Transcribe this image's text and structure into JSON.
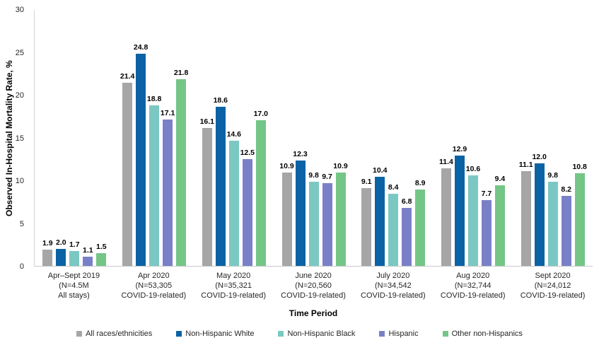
{
  "chart_data": {
    "type": "bar",
    "title": "",
    "ylabel": "Observed In-Hospital Mortality Rate, %",
    "xlabel": "Time Period",
    "ylim": [
      0,
      30
    ],
    "yticks": [
      0,
      5,
      10,
      15,
      20,
      25,
      30
    ],
    "grid": false,
    "legend_position": "bottom",
    "value_labels": true,
    "dotted_pattern_category_index": 0,
    "categories": [
      [
        "Apr–Sept 2019",
        "(N=4.5M",
        "All stays)"
      ],
      [
        "Apr 2020",
        "(N=53,305",
        "COVID-19-related)"
      ],
      [
        "May 2020",
        "(N=35,321",
        "COVID-19-related)"
      ],
      [
        "June 2020",
        "(N=20,560",
        "COVID-19-related)"
      ],
      [
        "July 2020",
        "(N=34,542",
        "COVID-19-related)"
      ],
      [
        "Aug 2020",
        "(N=32,744",
        "COVID-19-related)"
      ],
      [
        "Sept 2020",
        "(N=24,012",
        "COVID-19-related)"
      ]
    ],
    "series": [
      {
        "name": "All races/ethnicities",
        "color": "#A6A6A6",
        "values": [
          1.9,
          21.4,
          16.1,
          10.9,
          9.1,
          11.4,
          11.1
        ]
      },
      {
        "name": "Non-Hispanic White",
        "color": "#0B63A5",
        "values": [
          2.0,
          24.8,
          18.6,
          12.3,
          10.4,
          12.9,
          12.0
        ]
      },
      {
        "name": "Non-Hispanic Black",
        "color": "#7BC8C3",
        "values": [
          1.7,
          18.8,
          14.6,
          9.8,
          8.4,
          10.6,
          9.8
        ]
      },
      {
        "name": "Hispanic",
        "color": "#7A80C7",
        "values": [
          1.1,
          17.1,
          12.5,
          9.7,
          6.8,
          7.7,
          8.2
        ]
      },
      {
        "name": "Other non-Hispanics",
        "color": "#74C687",
        "values": [
          1.5,
          21.8,
          17.0,
          10.9,
          8.9,
          9.4,
          10.8
        ]
      }
    ]
  }
}
